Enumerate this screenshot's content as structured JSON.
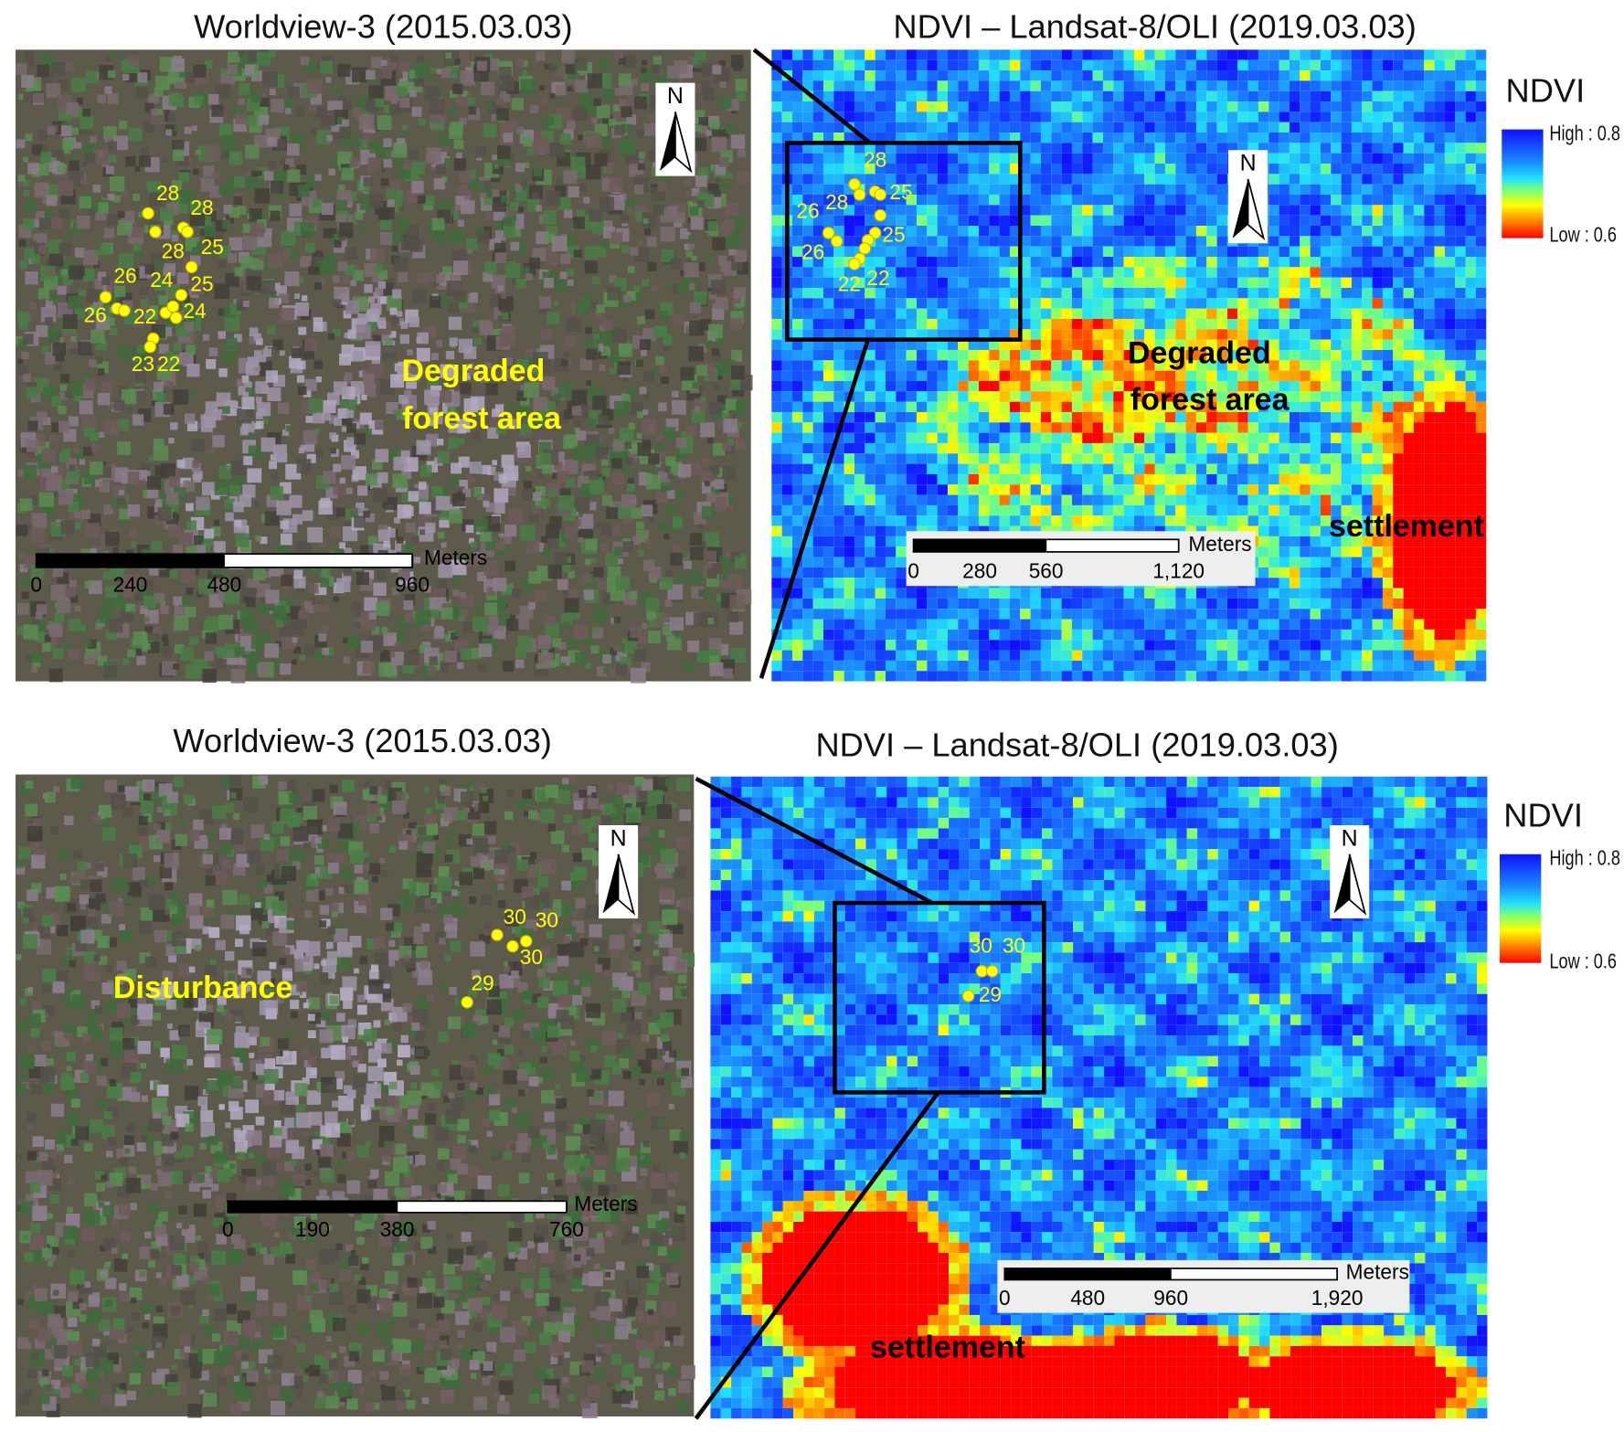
{
  "panels": [
    {
      "title": "Worldview-3 (2015.03.03)",
      "kind": "satellite",
      "north": "N",
      "points": [
        28,
        28,
        25,
        28,
        26,
        24,
        25,
        26,
        22,
        24,
        23,
        22
      ],
      "annotation": [
        "Degraded",
        "forest area"
      ],
      "scale": {
        "unit": "Meters",
        "ticks": [
          0,
          240,
          480,
          960
        ]
      }
    },
    {
      "title": "NDVI – Landsat-8/OLI (2019.03.03)",
      "kind": "ndvi",
      "north": "N",
      "points": [
        28,
        28,
        25,
        26,
        25,
        26,
        22,
        22
      ],
      "annotation": [
        "Degraded",
        "forest area"
      ],
      "settlement": "settlement",
      "scale": {
        "unit": "Meters",
        "ticks": [
          0,
          280,
          560,
          {
            "value": 1120,
            "label": "1,120"
          }
        ]
      },
      "legend": {
        "title": "NDVI",
        "high": "High : 0.8",
        "low": "Low : 0.6"
      }
    },
    {
      "title": "Worldview-3 (2015.03.03)",
      "kind": "satellite",
      "north": "N",
      "points": [
        30,
        30,
        30,
        29
      ],
      "annotation": [
        "Disturbance"
      ],
      "scale": {
        "unit": "Meters",
        "ticks": [
          0,
          190,
          380,
          760
        ]
      }
    },
    {
      "title": "NDVI – Landsat-8/OLI (2019.03.03)",
      "kind": "ndvi",
      "north": "N",
      "points": [
        30,
        30,
        29
      ],
      "settlement": "settlement",
      "scale": {
        "unit": "Meters",
        "ticks": [
          0,
          480,
          960,
          {
            "value": 1920,
            "label": "1,920"
          }
        ]
      },
      "legend": {
        "title": "NDVI",
        "high": "High : 0.8",
        "low": "Low : 0.6"
      }
    }
  ]
}
